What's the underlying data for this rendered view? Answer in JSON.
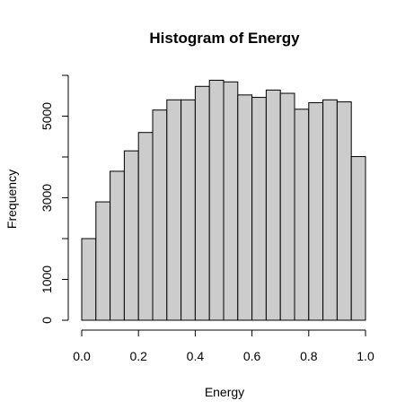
{
  "chart_data": {
    "type": "bar",
    "title": "Histogram of Energy",
    "xlabel": "Energy",
    "ylabel": "Frequency",
    "bin_width": 0.05,
    "x": [
      0.0,
      0.05,
      0.1,
      0.15,
      0.2,
      0.25,
      0.3,
      0.35,
      0.4,
      0.45,
      0.5,
      0.55,
      0.6,
      0.65,
      0.7,
      0.75,
      0.8,
      0.85,
      0.9,
      0.95
    ],
    "values": [
      2000,
      2900,
      3650,
      4150,
      4600,
      5150,
      5400,
      5400,
      5730,
      5880,
      5840,
      5520,
      5460,
      5640,
      5560,
      5170,
      5330,
      5400,
      5350,
      4010
    ],
    "xlim": [
      0.0,
      1.0
    ],
    "ylim": [
      0,
      6000
    ],
    "x_ticks": [
      "0.0",
      "0.2",
      "0.4",
      "0.6",
      "0.8",
      "1.0"
    ],
    "x_tick_values": [
      0.0,
      0.2,
      0.4,
      0.6,
      0.8,
      1.0
    ],
    "y_ticks": [
      "0",
      "1000",
      "3000",
      "5000"
    ],
    "y_tick_values": [
      0,
      1000,
      3000,
      5000
    ],
    "y_minor_tick_values": [
      2000,
      4000,
      6000
    ],
    "bar_color": "#cccccc",
    "grid": false
  }
}
